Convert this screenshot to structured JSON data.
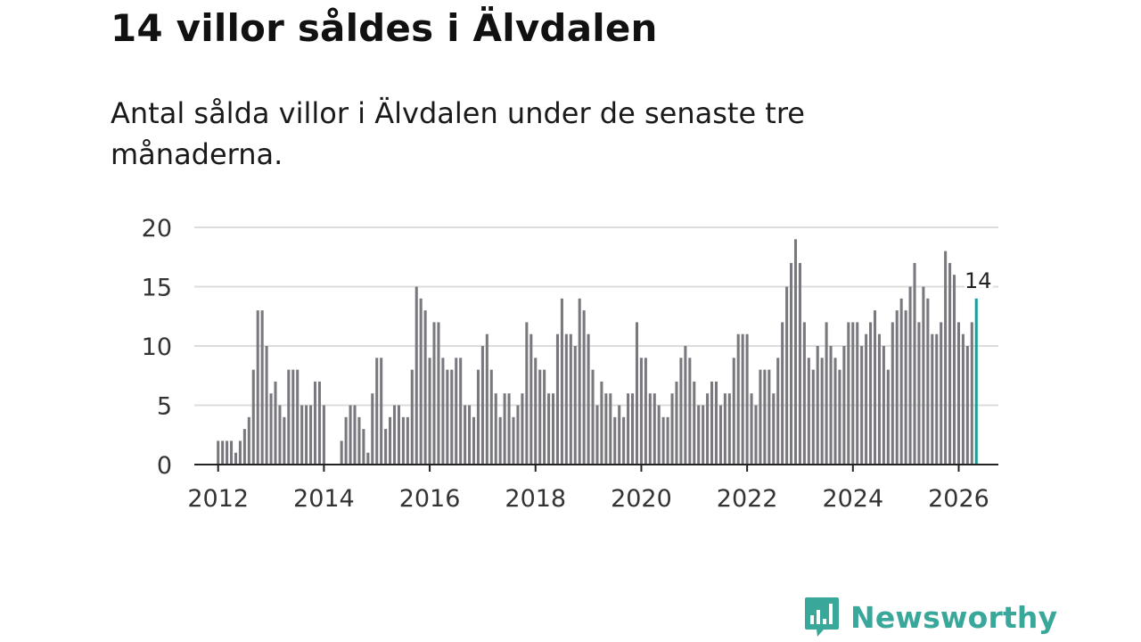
{
  "header": {
    "title": "14 villor såldes i Älvdalen",
    "subtitle": "Antal sålda villor i Älvdalen under de senaste tre månaderna."
  },
  "brand": {
    "name": "Newsworthy",
    "icon": "newsworthy-logo-icon",
    "color": "#3aa79b"
  },
  "colors": {
    "bar": "#7a787e",
    "highlight": "#1a9e98",
    "grid": "#dcdcdc",
    "axis": "#222222"
  },
  "chart_data": {
    "type": "bar",
    "title": "14 villor såldes i Älvdalen",
    "subtitle": "Antal sålda villor i Älvdalen under de senaste tre månaderna.",
    "xlabel": "",
    "ylabel": "",
    "x_start": 2012.0,
    "x_step": 0.08333,
    "ylim": [
      0,
      20
    ],
    "yticks": [
      0,
      5,
      10,
      15,
      20
    ],
    "xticks": [
      2012,
      2014,
      2016,
      2018,
      2020,
      2022,
      2024,
      2026
    ],
    "grid": true,
    "values": [
      2,
      2,
      2,
      2,
      1,
      2,
      3,
      4,
      8,
      13,
      13,
      10,
      6,
      7,
      5,
      4,
      8,
      8,
      8,
      5,
      5,
      5,
      7,
      7,
      5,
      0,
      0,
      0,
      2,
      4,
      5,
      5,
      4,
      3,
      1,
      6,
      9,
      9,
      3,
      4,
      5,
      5,
      4,
      4,
      8,
      15,
      14,
      13,
      9,
      12,
      12,
      9,
      8,
      8,
      9,
      9,
      5,
      5,
      4,
      8,
      10,
      11,
      8,
      6,
      4,
      6,
      6,
      4,
      5,
      6,
      12,
      11,
      9,
      8,
      8,
      6,
      6,
      11,
      14,
      11,
      11,
      10,
      14,
      13,
      11,
      8,
      5,
      7,
      6,
      6,
      4,
      5,
      4,
      6,
      6,
      12,
      9,
      9,
      6,
      6,
      5,
      4,
      4,
      6,
      7,
      9,
      10,
      9,
      7,
      5,
      5,
      6,
      7,
      7,
      5,
      6,
      6,
      9,
      11,
      11,
      11,
      6,
      5,
      8,
      8,
      8,
      6,
      9,
      12,
      15,
      17,
      19,
      17,
      12,
      9,
      8,
      10,
      9,
      12,
      10,
      9,
      8,
      10,
      12,
      12,
      12,
      10,
      11,
      12,
      13,
      11,
      10,
      8,
      12,
      13,
      14,
      13,
      15,
      17,
      12,
      15,
      14,
      11,
      11,
      12,
      18,
      17,
      16,
      12,
      11,
      10,
      12,
      14
    ],
    "highlight_last": true,
    "last_label": "14"
  }
}
